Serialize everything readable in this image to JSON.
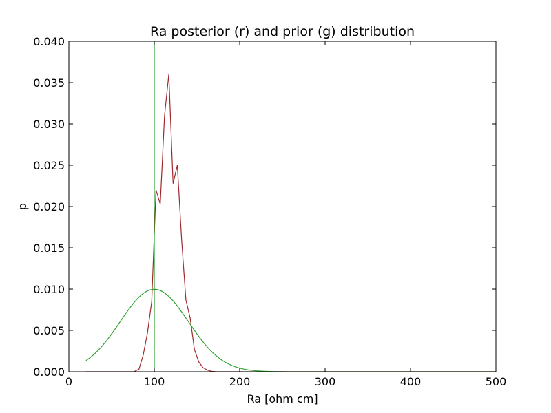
{
  "chart_data": {
    "type": "line",
    "title": "Ra posterior (r) and prior (g) distribution",
    "xlabel": "Ra [ohm cm]",
    "ylabel": "p",
    "xlim": [
      0,
      500
    ],
    "ylim": [
      0,
      0.04
    ],
    "x_ticks": [
      0,
      100,
      200,
      300,
      400,
      500
    ],
    "y_ticks": [
      0.0,
      0.005,
      0.01,
      0.015,
      0.02,
      0.025,
      0.03,
      0.035,
      0.04
    ],
    "x_tick_labels": [
      "0",
      "100",
      "200",
      "300",
      "400",
      "500"
    ],
    "y_tick_labels": [
      "0.000",
      "0.005",
      "0.010",
      "0.015",
      "0.020",
      "0.025",
      "0.030",
      "0.035",
      "0.040"
    ],
    "grid": false,
    "legend": "none",
    "series": [
      {
        "color": "#a0282d",
        "x": [
          20,
          70,
          76,
          82,
          87,
          92,
          97,
          102,
          107,
          112,
          117,
          122,
          127,
          132,
          137,
          142,
          147,
          152,
          157,
          162,
          167,
          172,
          180,
          500
        ],
        "y": [
          0.0,
          0.0,
          0.0,
          0.0003,
          0.002,
          0.0047,
          0.0085,
          0.022,
          0.0203,
          0.031,
          0.036,
          0.0228,
          0.025,
          0.016,
          0.0087,
          0.0065,
          0.0027,
          0.0012,
          0.0005,
          0.0002,
          5e-05,
          0.0,
          0.0,
          0.0
        ]
      },
      {
        "color": "#2ca02c",
        "type": "gaussian",
        "mean": 100,
        "std": 40,
        "x_range": [
          20,
          500
        ]
      }
    ],
    "vline": {
      "x": 100,
      "color": "#2ca02c"
    }
  }
}
